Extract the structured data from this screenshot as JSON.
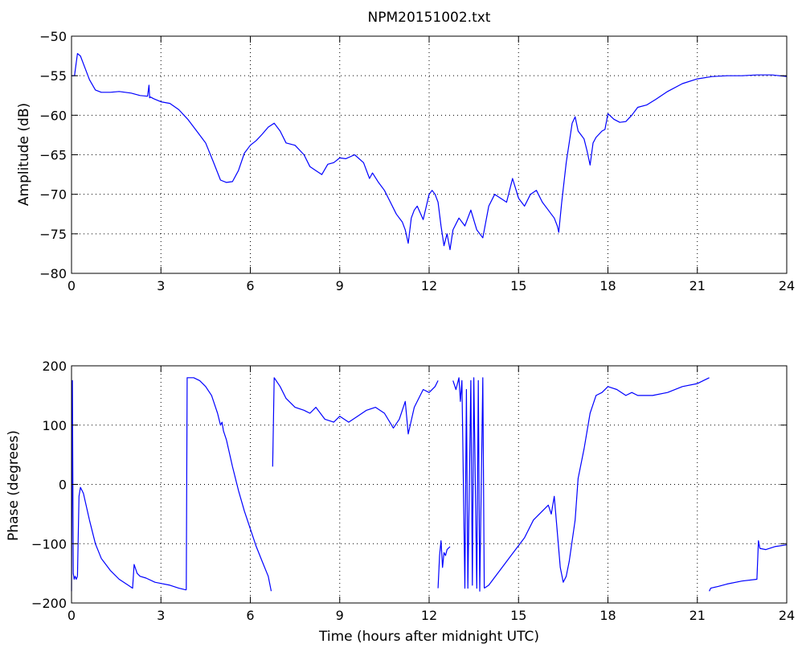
{
  "chart_data": [
    {
      "type": "line",
      "title": "NPM20151002.txt",
      "xlabel": "",
      "ylabel": "Amplitude (dB)",
      "xlim": [
        0,
        24
      ],
      "ylim": [
        -80,
        -50
      ],
      "xticks": [
        0,
        3,
        6,
        9,
        12,
        15,
        18,
        21,
        24
      ],
      "yticks": [
        -50,
        -55,
        -60,
        -65,
        -70,
        -75,
        -80
      ],
      "grid": true,
      "line_color": "#0000ff",
      "series": [
        {
          "x": [
            0,
            0.1,
            0.2,
            0.3,
            0.45,
            0.6,
            0.8,
            1.0,
            1.3,
            1.6,
            2.0,
            2.3,
            2.55,
            2.6,
            2.62,
            2.65,
            2.75,
            3.0,
            3.3,
            3.6,
            3.9,
            4.2,
            4.5,
            4.75,
            5.0,
            5.2,
            5.4,
            5.6,
            5.8,
            6.0,
            6.2,
            6.4,
            6.6,
            6.8,
            7.0,
            7.2,
            7.5,
            7.8,
            8.0,
            8.2,
            8.4,
            8.6,
            8.8,
            9.0,
            9.2,
            9.5,
            9.8,
            10.0,
            10.1,
            10.3,
            10.5,
            10.7,
            10.9,
            11.1,
            11.2,
            11.3,
            11.4,
            11.5,
            11.6,
            11.8,
            12.0,
            12.1,
            12.2,
            12.3,
            12.4,
            12.5,
            12.6,
            12.7,
            12.8,
            13.0,
            13.2,
            13.4,
            13.6,
            13.8,
            14.0,
            14.2,
            14.4,
            14.6,
            14.8,
            15.0,
            15.2,
            15.4,
            15.6,
            15.8,
            16.0,
            16.1,
            16.2,
            16.3,
            16.35,
            16.45,
            16.6,
            16.8,
            16.9,
            17.0,
            17.1,
            17.2,
            17.3,
            17.4,
            17.5,
            17.6,
            17.8,
            17.9,
            18.0,
            18.2,
            18.4,
            18.6,
            18.8,
            19.0,
            19.3,
            19.6,
            20.0,
            20.5,
            21.0,
            21.5,
            22.0,
            22.5,
            23.0,
            23.5,
            24.0
          ],
          "y": [
            -55,
            -55,
            -52.2,
            -52.5,
            -54,
            -55.5,
            -56.8,
            -57.1,
            -57.1,
            -57.0,
            -57.2,
            -57.5,
            -57.6,
            -56.2,
            -57.8,
            -57.7,
            -57.9,
            -58.3,
            -58.5,
            -59.3,
            -60.5,
            -62.0,
            -63.5,
            -65.8,
            -68.2,
            -68.5,
            -68.4,
            -67.0,
            -64.8,
            -63.8,
            -63.2,
            -62.4,
            -61.5,
            -61.0,
            -62.0,
            -63.5,
            -63.8,
            -65.0,
            -66.5,
            -67.0,
            -67.5,
            -66.2,
            -66.0,
            -65.4,
            -65.5,
            -65.0,
            -66.0,
            -68.0,
            -67.3,
            -68.5,
            -69.5,
            -71.0,
            -72.5,
            -73.5,
            -74.5,
            -76.2,
            -73.0,
            -72.0,
            -71.5,
            -73.2,
            -70.0,
            -69.5,
            -70.0,
            -71.0,
            -74.0,
            -76.5,
            -75.0,
            -77.0,
            -74.5,
            -73.0,
            -74.0,
            -72.0,
            -74.5,
            -75.5,
            -71.5,
            -70.0,
            -70.5,
            -71.0,
            -68.0,
            -70.5,
            -71.5,
            -70.0,
            -69.5,
            -71.0,
            -72.0,
            -72.5,
            -73.0,
            -74.0,
            -74.8,
            -71.0,
            -66.0,
            -61.0,
            -60.2,
            -62.0,
            -62.5,
            -63.0,
            -64.5,
            -66.3,
            -63.5,
            -62.8,
            -62.0,
            -61.8,
            -59.8,
            -60.5,
            -60.9,
            -60.8,
            -60.0,
            -59.0,
            -58.7,
            -58.0,
            -57.0,
            -56.0,
            -55.4,
            -55.1,
            -55.0,
            -55.0,
            -54.9,
            -54.9,
            -55.1
          ]
        }
      ]
    },
    {
      "type": "line",
      "title": "",
      "xlabel": "Time (hours after midnight UTC)",
      "ylabel": "Phase (degrees)",
      "xlim": [
        0,
        24
      ],
      "ylim": [
        -200,
        200
      ],
      "xticks": [
        0,
        3,
        6,
        9,
        12,
        15,
        18,
        21,
        24
      ],
      "yticks": [
        200,
        100,
        0,
        -100,
        -200
      ],
      "grid": true,
      "line_color": "#0000ff",
      "segments": [
        {
          "x": [
            0,
            0.03,
            0.06,
            0.09,
            0.12,
            0.16,
            0.2
          ],
          "y": [
            -180,
            175,
            -150,
            -160,
            -155,
            -160,
            -155
          ]
        },
        {
          "x": [
            0.2,
            0.25,
            0.3,
            0.4,
            0.6,
            0.8,
            1.0,
            1.3,
            1.6,
            1.9,
            2.05,
            2.1,
            2.2,
            2.3,
            2.5,
            2.8,
            3.0,
            3.3,
            3.6,
            3.85
          ],
          "y": [
            -155,
            -20,
            -5,
            -15,
            -60,
            -100,
            -125,
            -145,
            -160,
            -170,
            -175,
            -135,
            -150,
            -155,
            -158,
            -165,
            -167,
            -170,
            -175,
            -178
          ]
        },
        {
          "x": [
            3.85,
            3.88,
            4.1,
            4.3,
            4.5,
            4.7,
            4.9,
            5.0,
            5.05,
            5.1,
            5.2,
            5.4,
            5.6,
            5.8,
            6.0,
            6.2,
            6.4,
            6.6,
            6.7
          ],
          "y": [
            -178,
            180,
            180,
            175,
            165,
            150,
            120,
            100,
            105,
            90,
            75,
            30,
            -10,
            -45,
            -75,
            -105,
            -130,
            -155,
            -180
          ]
        },
        {
          "x": [
            6.75,
            6.8,
            7.0,
            7.2,
            7.5,
            7.8,
            8.0,
            8.2,
            8.5,
            8.8,
            9.0,
            9.3,
            9.6,
            9.9,
            10.2,
            10.5,
            10.8,
            11.0,
            11.2,
            11.3,
            11.5,
            11.8,
            12.0,
            12.2,
            12.3
          ],
          "y": [
            30,
            180,
            165,
            145,
            130,
            125,
            120,
            130,
            110,
            105,
            115,
            105,
            115,
            125,
            130,
            120,
            95,
            110,
            140,
            85,
            130,
            160,
            155,
            165,
            175
          ]
        },
        {
          "x": [
            12.3,
            12.35,
            12.4,
            12.45,
            12.5,
            12.55,
            12.6,
            12.7
          ],
          "y": [
            -175,
            -120,
            -95,
            -140,
            -115,
            -120,
            -110,
            -105
          ]
        },
        {
          "x": [
            12.8,
            12.9,
            13.0,
            13.05,
            13.1,
            13.2,
            13.25,
            13.3,
            13.4,
            13.45,
            13.5,
            13.6,
            13.65,
            13.7,
            13.8,
            13.85
          ],
          "y": [
            175,
            160,
            180,
            140,
            175,
            -175,
            160,
            -175,
            175,
            -170,
            180,
            -175,
            175,
            -180,
            180,
            -175
          ]
        },
        {
          "x": [
            13.85,
            14.0,
            14.3,
            14.6,
            14.9,
            15.2,
            15.5,
            15.8,
            16.0,
            16.1,
            16.2,
            16.25,
            16.4,
            16.5,
            16.6,
            16.7,
            16.9,
            17.0,
            17.2,
            17.4,
            17.6,
            17.8,
            18.0,
            18.3,
            18.6,
            18.8,
            19.0,
            19.5,
            20.0,
            20.5,
            21.0,
            21.4
          ],
          "y": [
            -175,
            -170,
            -150,
            -130,
            -110,
            -90,
            -60,
            -45,
            -35,
            -50,
            -20,
            -50,
            -140,
            -165,
            -155,
            -130,
            -60,
            10,
            60,
            120,
            150,
            155,
            165,
            160,
            150,
            155,
            150,
            150,
            155,
            165,
            170,
            180
          ]
        },
        {
          "x": [
            21.4,
            21.45,
            21.7,
            22.0,
            22.5,
            23.0,
            23.05,
            23.1,
            23.3,
            23.6,
            24.0
          ],
          "y": [
            -180,
            -175,
            -172,
            -168,
            -163,
            -160,
            -95,
            -108,
            -110,
            -105,
            -102
          ]
        }
      ]
    }
  ]
}
